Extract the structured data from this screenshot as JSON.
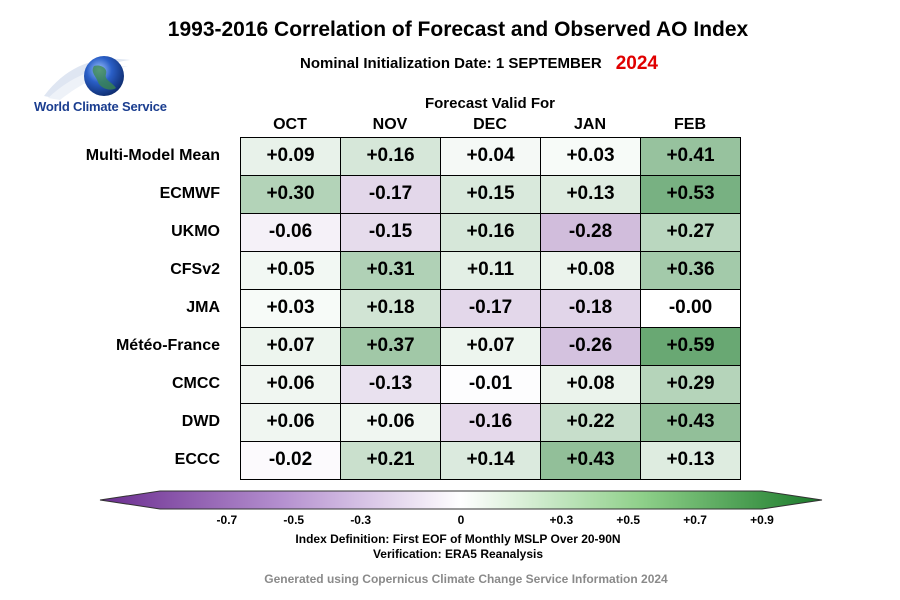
{
  "title": "1993-2016 Correlation of Forecast and Observed AO Index",
  "subtitle": "Nominal Initialization Date: 1 SEPTEMBER",
  "year": "2024",
  "year_color": "#e00000",
  "logo_text": "World Climate Service",
  "header": "Forecast Valid For",
  "index_definition": "Index Definition: First EOF of Monthly MSLP Over 20-90N",
  "verification": "Verification: ERA5 Reanalysis",
  "credit": "Generated using Copernicus Climate Change Service Information 2024",
  "colors": {
    "negative": "#6a2c8f",
    "zero": "#ffffff",
    "positive": "#1a7a2a"
  },
  "chart_data": {
    "type": "heatmap",
    "columns": [
      "OCT",
      "NOV",
      "DEC",
      "JAN",
      "FEB"
    ],
    "rows": [
      "Multi-Model Mean",
      "ECMWF",
      "UKMO",
      "CFSv2",
      "JMA",
      "Météo-France",
      "CMCC",
      "DWD",
      "ECCC"
    ],
    "values": [
      [
        0.09,
        0.16,
        0.04,
        0.03,
        0.41
      ],
      [
        0.3,
        -0.17,
        0.15,
        0.13,
        0.53
      ],
      [
        -0.06,
        -0.15,
        0.16,
        -0.28,
        0.27
      ],
      [
        0.05,
        0.31,
        0.11,
        0.08,
        0.36
      ],
      [
        0.03,
        0.18,
        -0.17,
        -0.18,
        -0.0
      ],
      [
        0.07,
        0.37,
        0.07,
        -0.26,
        0.59
      ],
      [
        0.06,
        -0.13,
        -0.01,
        0.08,
        0.29
      ],
      [
        0.06,
        0.06,
        -0.16,
        0.22,
        0.43
      ],
      [
        -0.02,
        0.21,
        0.14,
        0.43,
        0.13
      ]
    ],
    "labels": [
      [
        "+0.09",
        "+0.16",
        "+0.04",
        "+0.03",
        "+0.41"
      ],
      [
        "+0.30",
        "-0.17",
        "+0.15",
        "+0.13",
        "+0.53"
      ],
      [
        "-0.06",
        "-0.15",
        "+0.16",
        "-0.28",
        "+0.27"
      ],
      [
        "+0.05",
        "+0.31",
        "+0.11",
        "+0.08",
        "+0.36"
      ],
      [
        "+0.03",
        "+0.18",
        "-0.17",
        "-0.18",
        "-0.00"
      ],
      [
        "+0.07",
        "+0.37",
        "+0.07",
        "-0.26",
        "+0.59"
      ],
      [
        "+0.06",
        "-0.13",
        "-0.01",
        "+0.08",
        "+0.29"
      ],
      [
        "+0.06",
        "+0.06",
        "-0.16",
        "+0.22",
        "+0.43"
      ],
      [
        "-0.02",
        "+0.21",
        "+0.14",
        "+0.43",
        "+0.13"
      ]
    ],
    "colorbar": {
      "range": [
        -0.9,
        0.9
      ],
      "ticks": [
        -0.7,
        -0.5,
        -0.3,
        0,
        0.3,
        0.5,
        0.7,
        0.9
      ],
      "tick_labels": [
        "-0.7",
        "-0.5",
        "-0.3",
        "0",
        "+0.3",
        "+0.5",
        "+0.7",
        "+0.9"
      ]
    }
  }
}
